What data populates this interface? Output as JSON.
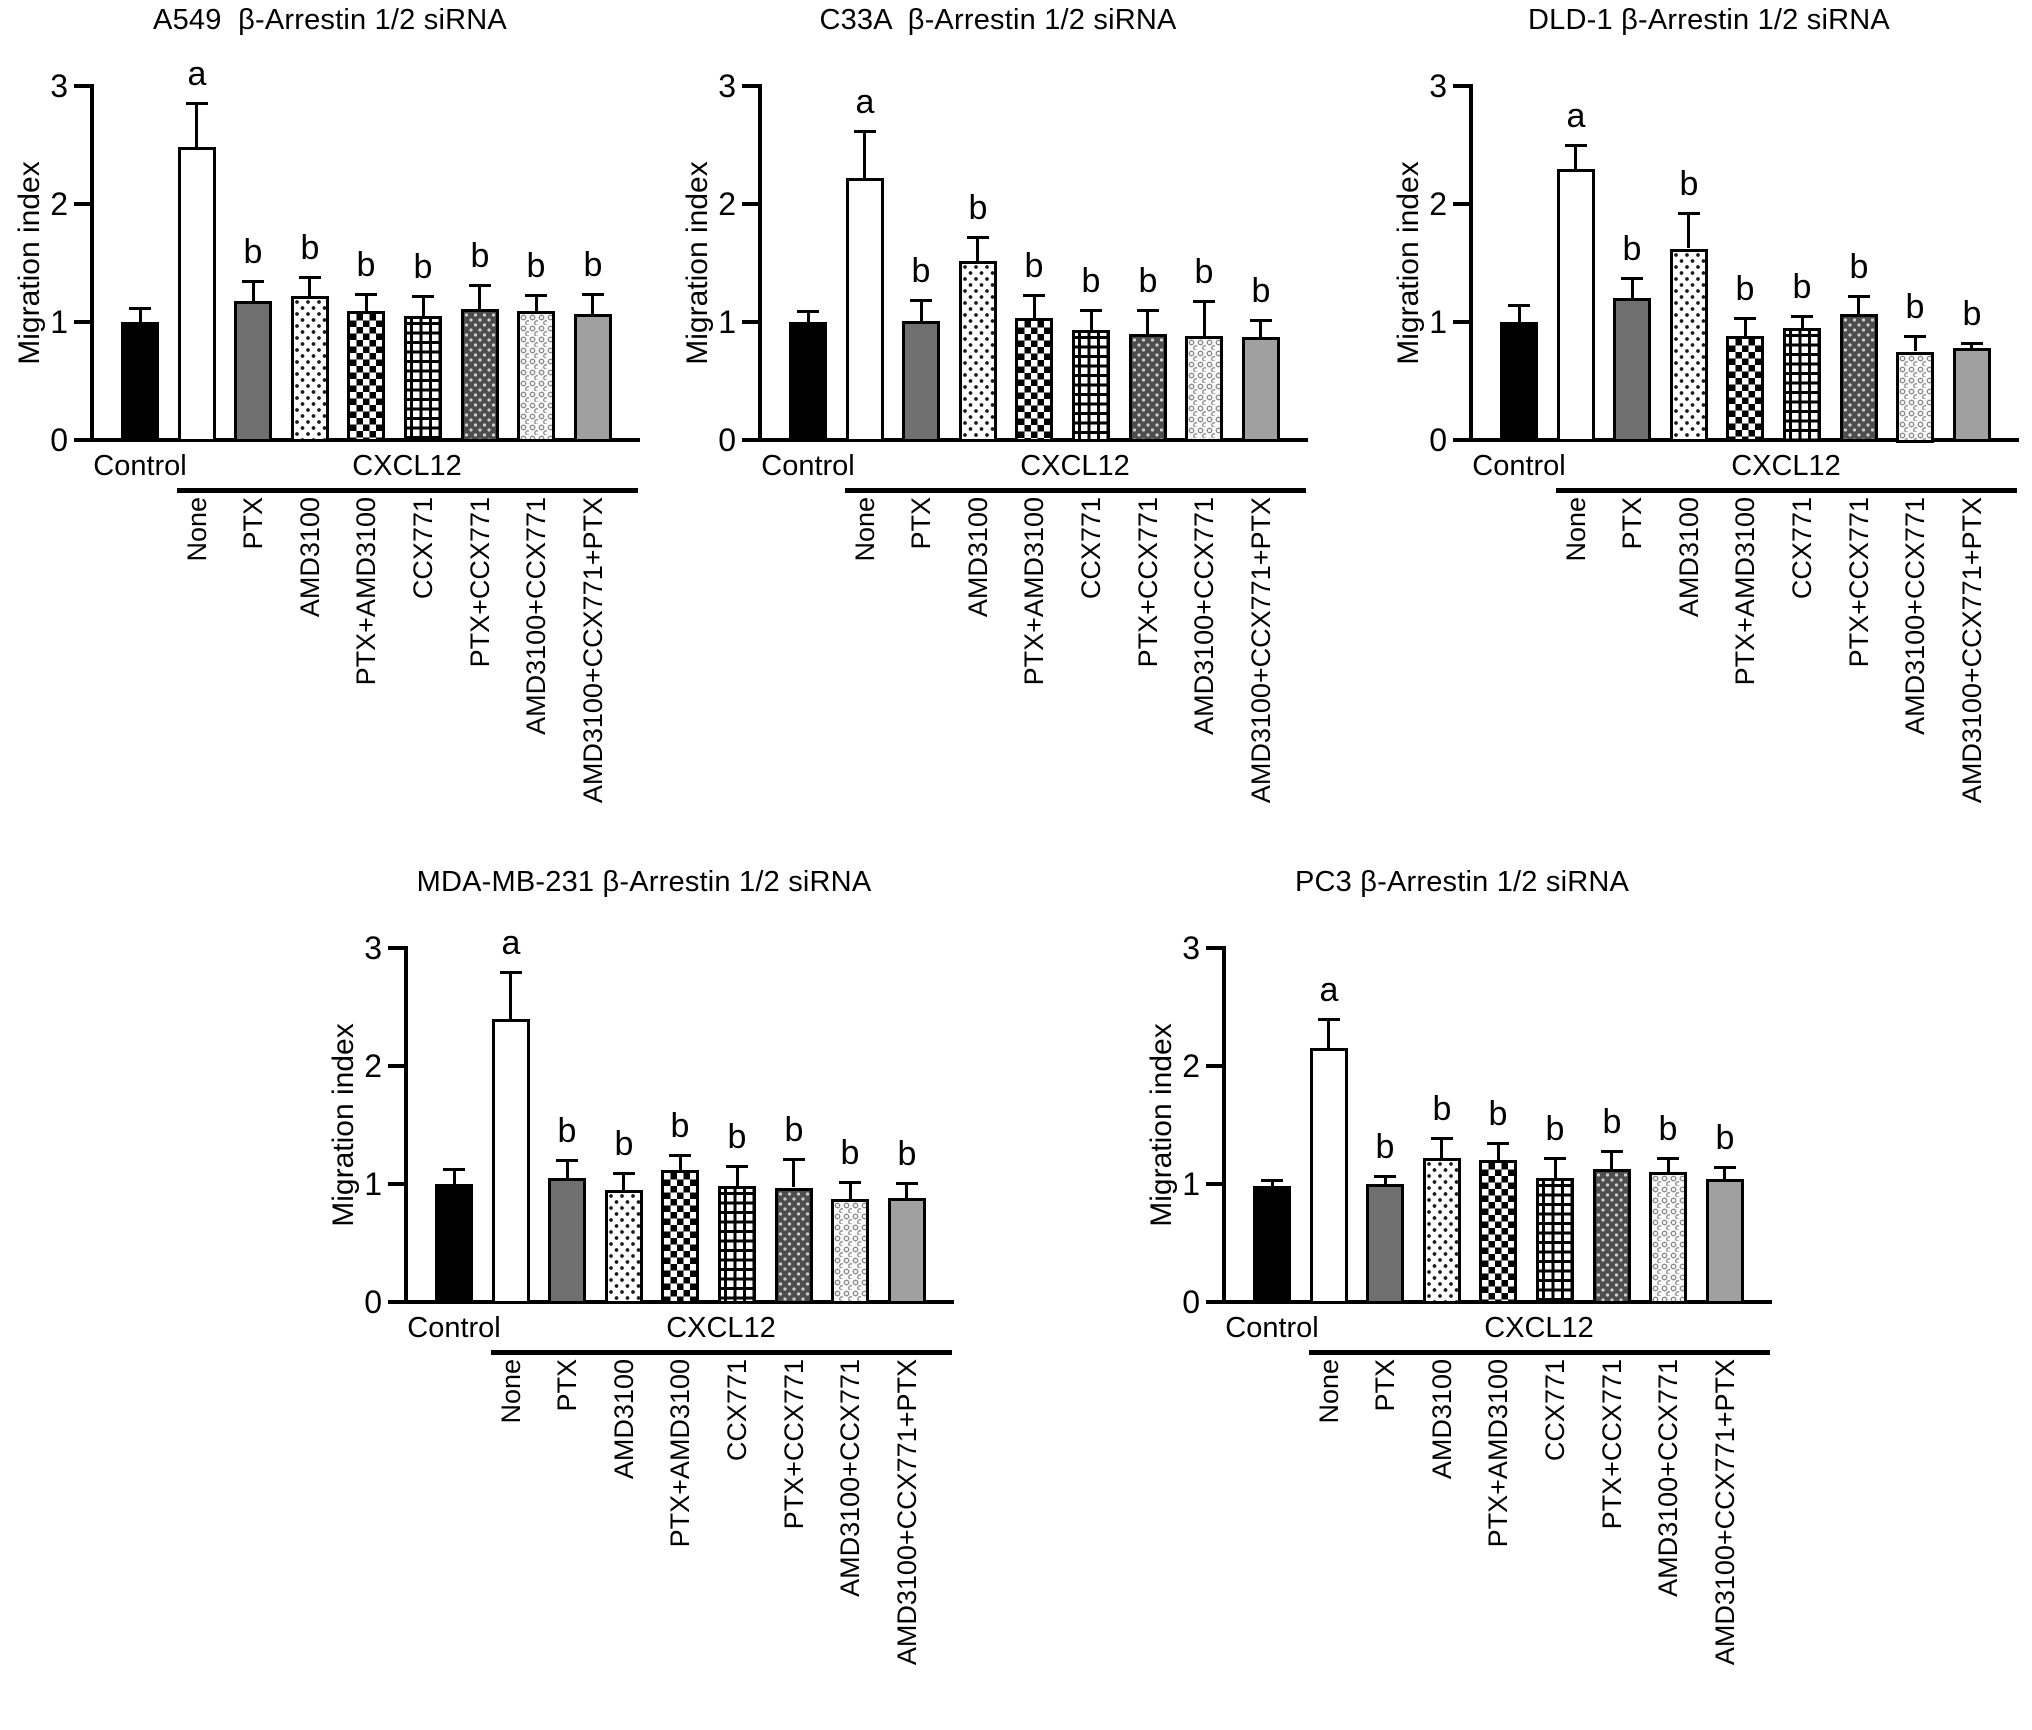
{
  "figure": {
    "background": "#ffffff",
    "text_color": "#000000",
    "x_group": {
      "control_label": "Control",
      "treatment_label": "CXCL12"
    },
    "patterns": [
      "solid-black",
      "solid-white",
      "solid-dark-gray",
      "black-dots-on-white",
      "checkerboard",
      "grid-crosshatch",
      "white-dots-on-dark-gray",
      "gray-circles-on-white",
      "solid-gray"
    ]
  },
  "chart_data": [
    {
      "type": "bar",
      "title": "A549  β-Arrestin 1/2 siRNA",
      "xlabel": "",
      "ylabel": "Migration index",
      "ylim": [
        0,
        3
      ],
      "yticks": [
        0,
        1,
        2,
        3
      ],
      "categories": [
        "Control",
        "None",
        "PTX",
        "AMD3100",
        "PTX+AMD3100",
        "CCX771",
        "PTX+CCX771",
        "AMD3100+CCX771",
        "AMD3100+CCX771+PTX"
      ],
      "values": [
        1.0,
        2.48,
        1.18,
        1.22,
        1.09,
        1.05,
        1.11,
        1.09,
        1.07
      ],
      "errors": [
        0.12,
        0.38,
        0.17,
        0.16,
        0.15,
        0.17,
        0.2,
        0.14,
        0.17
      ],
      "sig_letters": [
        "",
        "a",
        "b",
        "b",
        "b",
        "b",
        "b",
        "b",
        "b"
      ]
    },
    {
      "type": "bar",
      "title": "C33A  β-Arrestin 1/2 siRNA",
      "xlabel": "",
      "ylabel": "Migration index",
      "ylim": [
        0,
        3
      ],
      "yticks": [
        0,
        1,
        2,
        3
      ],
      "categories": [
        "Control",
        "None",
        "PTX",
        "AMD3100",
        "PTX+AMD3100",
        "CCX771",
        "PTX+CCX771",
        "AMD3100+CCX771",
        "AMD3100+CCX771+PTX"
      ],
      "values": [
        1.0,
        2.22,
        1.01,
        1.52,
        1.03,
        0.93,
        0.9,
        0.88,
        0.87
      ],
      "errors": [
        0.09,
        0.4,
        0.18,
        0.2,
        0.2,
        0.17,
        0.2,
        0.3,
        0.15
      ],
      "sig_letters": [
        "",
        "a",
        "b",
        "b",
        "b",
        "b",
        "b",
        "b",
        "b"
      ]
    },
    {
      "type": "bar",
      "title": "DLD-1 β-Arrestin 1/2 siRNA",
      "xlabel": "",
      "ylabel": "Migration index",
      "ylim": [
        0,
        3
      ],
      "yticks": [
        0,
        1,
        2,
        3
      ],
      "categories": [
        "Control",
        "None",
        "PTX",
        "AMD3100",
        "PTX+AMD3100",
        "CCX771",
        "PTX+CCX771",
        "AMD3100+CCX771",
        "AMD3100+CCX771+PTX"
      ],
      "values": [
        1.0,
        2.3,
        1.2,
        1.62,
        0.88,
        0.95,
        1.07,
        0.75,
        0.78
      ],
      "errors": [
        0.14,
        0.2,
        0.17,
        0.3,
        0.15,
        0.1,
        0.15,
        0.13,
        0.04
      ],
      "sig_letters": [
        "",
        "a",
        "b",
        "b",
        "b",
        "b",
        "b",
        "b",
        "b"
      ]
    },
    {
      "type": "bar",
      "title": "MDA-MB-231 β-Arrestin 1/2 siRNA",
      "xlabel": "",
      "ylabel": "Migration index",
      "ylim": [
        0,
        3
      ],
      "yticks": [
        0,
        1,
        2,
        3
      ],
      "categories": [
        "Control",
        "None",
        "PTX",
        "AMD3100",
        "PTX+AMD3100",
        "CCX771",
        "PTX+CCX771",
        "AMD3100+CCX771",
        "AMD3100+CCX771+PTX"
      ],
      "values": [
        1.0,
        2.4,
        1.05,
        0.95,
        1.12,
        0.98,
        0.97,
        0.87,
        0.88
      ],
      "errors": [
        0.13,
        0.4,
        0.15,
        0.14,
        0.13,
        0.17,
        0.24,
        0.15,
        0.13
      ],
      "sig_letters": [
        "",
        "a",
        "b",
        "b",
        "b",
        "b",
        "b",
        "b",
        "b"
      ]
    },
    {
      "type": "bar",
      "title": "PC3 β-Arrestin 1/2 siRNA",
      "xlabel": "",
      "ylabel": "Migration index",
      "ylim": [
        0,
        3
      ],
      "yticks": [
        0,
        1,
        2,
        3
      ],
      "categories": [
        "Control",
        "None",
        "PTX",
        "AMD3100",
        "PTX+AMD3100",
        "CCX771",
        "PTX+CCX771",
        "AMD3100+CCX771",
        "AMD3100+CCX771+PTX"
      ],
      "values": [
        0.98,
        2.15,
        1.0,
        1.22,
        1.2,
        1.05,
        1.13,
        1.1,
        1.04
      ],
      "errors": [
        0.05,
        0.25,
        0.07,
        0.17,
        0.15,
        0.17,
        0.15,
        0.12,
        0.1
      ],
      "sig_letters": [
        "",
        "a",
        "b",
        "b",
        "b",
        "b",
        "b",
        "b",
        "b"
      ]
    }
  ]
}
